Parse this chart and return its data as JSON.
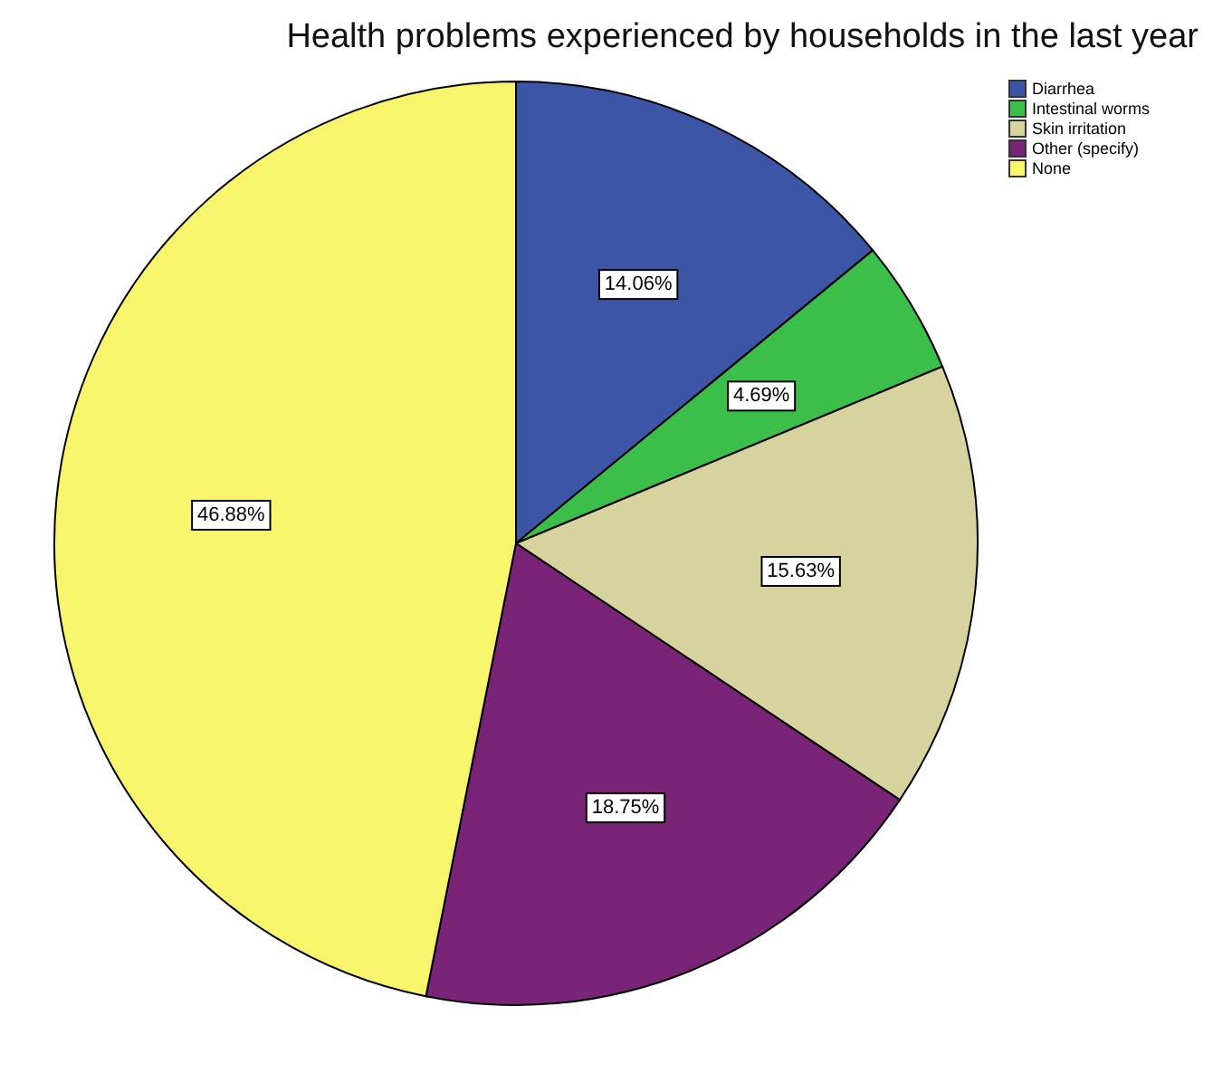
{
  "chart_data": {
    "type": "pie",
    "title": "Health problems experienced by households in the last year",
    "categories": [
      "Diarrhea",
      "Intestinal worms",
      "Skin irritation",
      "Other (specify)",
      "None"
    ],
    "values": [
      14.06,
      4.69,
      15.63,
      18.75,
      46.88
    ],
    "colors": [
      "#3d55a6",
      "#3cbf4a",
      "#d6d39e",
      "#7a2478",
      "#f8f56c"
    ],
    "value_labels": [
      "14.06%",
      "4.69%",
      "15.63%",
      "18.75%",
      "46.88%"
    ],
    "legend": "top right"
  }
}
